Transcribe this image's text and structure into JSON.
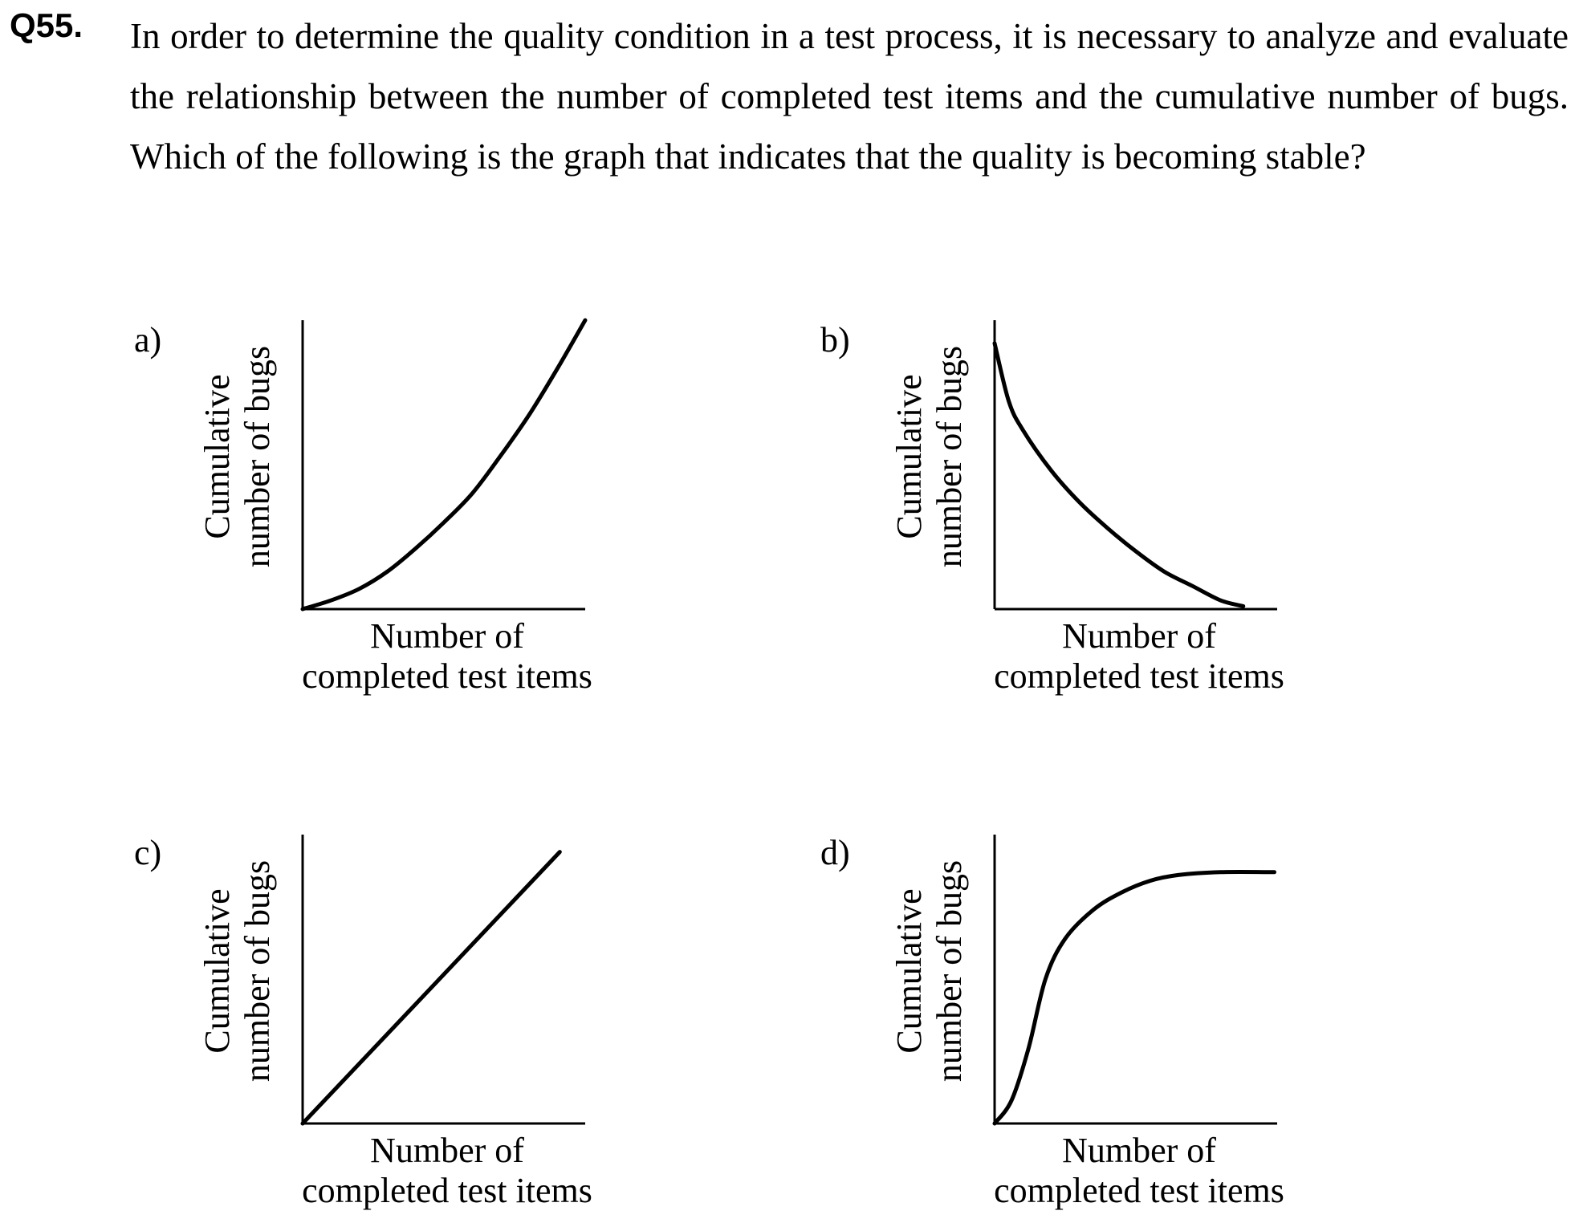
{
  "question": {
    "number": "Q55.",
    "text": "In order to determine the quality condition in a test process, it is necessary to analyze and evaluate the relationship between the number of completed test items and the cumulative number of bugs. Which of the following is the graph that indicates that the quality is becoming stable?"
  },
  "chart_data": [
    {
      "type": "line",
      "option": "a)",
      "xlabel": [
        "Number of",
        "completed test items"
      ],
      "ylabel": [
        "Cumulative",
        "number of bugs"
      ],
      "axis_ticks": "none",
      "shape": "convex increasing (accelerating)",
      "x": [
        0,
        0.1,
        0.2,
        0.3,
        0.4,
        0.5,
        0.6,
        0.7,
        0.8,
        0.9,
        1.0
      ],
      "y": [
        0,
        0.03,
        0.07,
        0.13,
        0.21,
        0.3,
        0.4,
        0.53,
        0.67,
        0.83,
        1.0
      ]
    },
    {
      "type": "line",
      "option": "b)",
      "xlabel": [
        "Number of",
        "completed test items"
      ],
      "ylabel": [
        "Cumulative",
        "number of bugs"
      ],
      "axis_ticks": "none",
      "shape": "decreasing (concave up)",
      "x": [
        0,
        0.05,
        0.1,
        0.2,
        0.3,
        0.4,
        0.5,
        0.6,
        0.7,
        0.8,
        0.88
      ],
      "y": [
        0.92,
        0.72,
        0.62,
        0.48,
        0.37,
        0.28,
        0.2,
        0.13,
        0.08,
        0.03,
        0.01
      ]
    },
    {
      "type": "line",
      "option": "c)",
      "xlabel": [
        "Number of",
        "completed test items"
      ],
      "ylabel": [
        "Cumulative",
        "number of bugs"
      ],
      "axis_ticks": "none",
      "shape": "linear increasing",
      "x": [
        0,
        0.91
      ],
      "y": [
        0,
        0.94
      ]
    },
    {
      "type": "line",
      "option": "d)",
      "xlabel": [
        "Number of",
        "completed test items"
      ],
      "ylabel": [
        "Cumulative",
        "number of bugs"
      ],
      "axis_ticks": "none",
      "shape": "S-curve saturating",
      "x": [
        0,
        0.06,
        0.12,
        0.18,
        0.25,
        0.35,
        0.45,
        0.55,
        0.65,
        0.8,
        0.99
      ],
      "y": [
        0,
        0.08,
        0.26,
        0.5,
        0.64,
        0.74,
        0.8,
        0.84,
        0.86,
        0.87,
        0.87
      ]
    }
  ]
}
